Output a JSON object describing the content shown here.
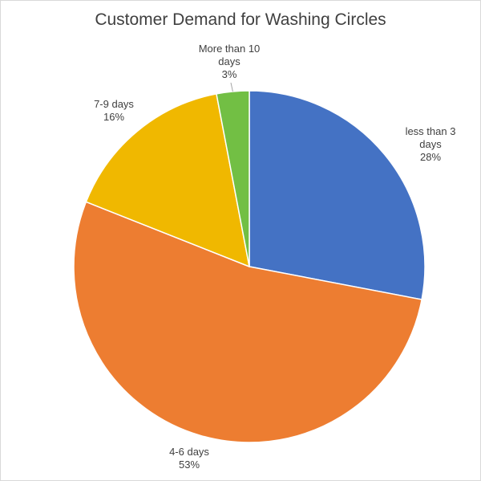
{
  "chart_data": {
    "type": "pie",
    "title": "Customer Demand for Washing Circles",
    "categories": [
      "less than 3 days",
      "4-6 days",
      "7-9 days",
      "More than 10 days"
    ],
    "values": [
      28,
      53,
      16,
      3
    ],
    "value_labels": [
      "28%",
      "53%",
      "16%",
      "3%"
    ],
    "colors": [
      "#4472c4",
      "#ed7d31",
      "#f0b800",
      "#72bf44"
    ],
    "legend": "none"
  }
}
